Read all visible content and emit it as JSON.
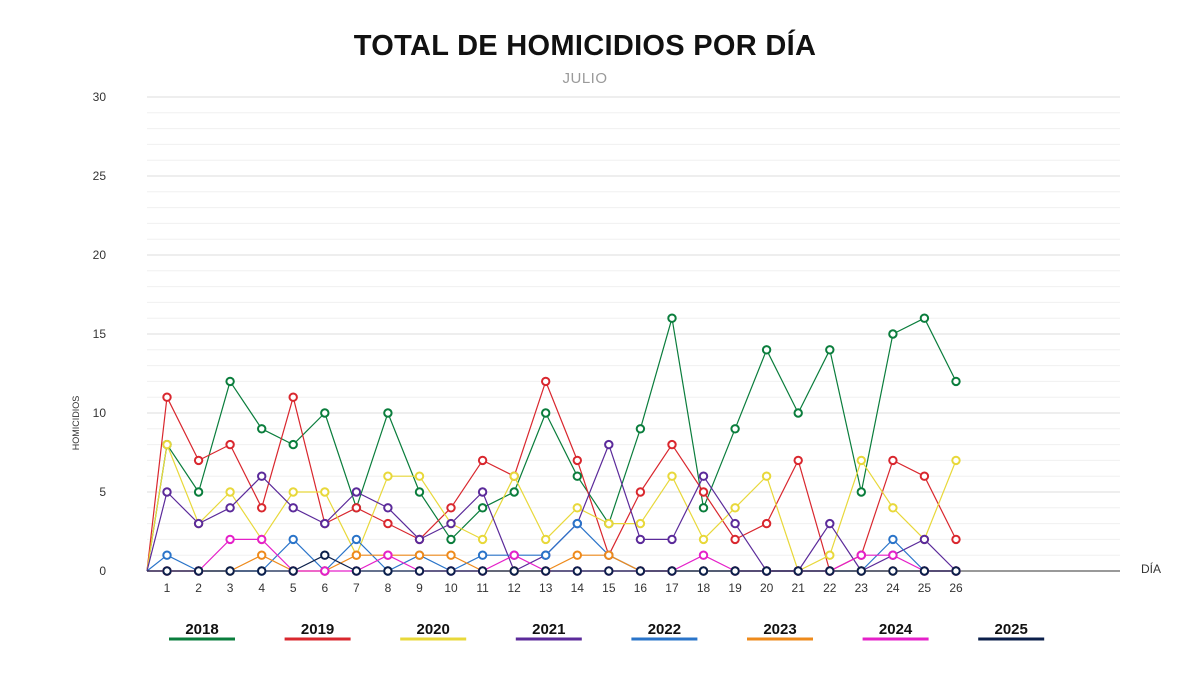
{
  "chart_data": {
    "type": "line",
    "title": "TOTAL DE HOMICIDIOS POR DÍA",
    "subtitle": "JULIO",
    "xlabel": "DÍA",
    "ylabel": "HOMICIDIOS",
    "x": [
      1,
      2,
      3,
      4,
      5,
      6,
      7,
      8,
      9,
      10,
      11,
      12,
      13,
      14,
      15,
      16,
      17,
      18,
      19,
      20,
      21,
      22,
      23,
      24,
      25,
      26
    ],
    "ylim": [
      0,
      30
    ],
    "yticks": [
      0,
      5,
      10,
      15,
      20,
      25,
      30
    ],
    "grid": true,
    "legend_position": "bottom",
    "series": [
      {
        "name": "2018",
        "color": "#0a7d3c",
        "values": [
          8,
          5,
          12,
          9,
          8,
          10,
          4,
          10,
          5,
          2,
          4,
          5,
          10,
          6,
          3,
          9,
          16,
          4,
          9,
          14,
          10,
          14,
          5,
          15,
          16,
          12
        ]
      },
      {
        "name": "2019",
        "color": "#d9272e",
        "values": [
          11,
          7,
          8,
          4,
          11,
          3,
          4,
          3,
          2,
          4,
          7,
          6,
          12,
          7,
          1,
          5,
          8,
          5,
          2,
          3,
          7,
          0,
          1,
          7,
          6,
          2
        ]
      },
      {
        "name": "2020",
        "color": "#e8d83a",
        "values": [
          8,
          3,
          5,
          2,
          5,
          5,
          1,
          6,
          6,
          3,
          2,
          6,
          2,
          4,
          3,
          3,
          6,
          2,
          4,
          6,
          0,
          1,
          7,
          4,
          2,
          7
        ]
      },
      {
        "name": "2021",
        "color": "#5b2a9a",
        "values": [
          5,
          3,
          4,
          6,
          4,
          3,
          5,
          4,
          2,
          3,
          5,
          0,
          1,
          3,
          8,
          2,
          2,
          6,
          3,
          0,
          0,
          3,
          0,
          1,
          2,
          0
        ]
      },
      {
        "name": "2022",
        "color": "#2a74c9",
        "values": [
          1,
          0,
          0,
          0,
          2,
          0,
          2,
          0,
          1,
          0,
          1,
          1,
          1,
          3,
          1,
          0,
          0,
          0,
          0,
          0,
          0,
          0,
          0,
          2,
          0,
          0
        ]
      },
      {
        "name": "2023",
        "color": "#ee8a1b",
        "values": [
          0,
          0,
          0,
          1,
          0,
          0,
          1,
          1,
          1,
          1,
          0,
          0,
          0,
          1,
          1,
          0,
          0,
          0,
          0,
          0,
          0,
          0,
          0,
          0,
          0,
          0
        ]
      },
      {
        "name": "2024",
        "color": "#e520c9",
        "values": [
          0,
          0,
          2,
          2,
          0,
          0,
          0,
          1,
          0,
          0,
          0,
          1,
          0,
          0,
          0,
          0,
          0,
          1,
          0,
          0,
          0,
          0,
          1,
          1,
          0,
          0
        ]
      },
      {
        "name": "2025",
        "color": "#0b1f4a",
        "values": [
          0,
          0,
          0,
          0,
          0,
          1,
          0,
          0,
          0,
          0,
          0,
          0,
          0,
          0,
          0,
          0,
          0,
          0,
          0,
          0,
          0,
          0,
          0,
          0,
          0,
          0
        ]
      }
    ]
  }
}
